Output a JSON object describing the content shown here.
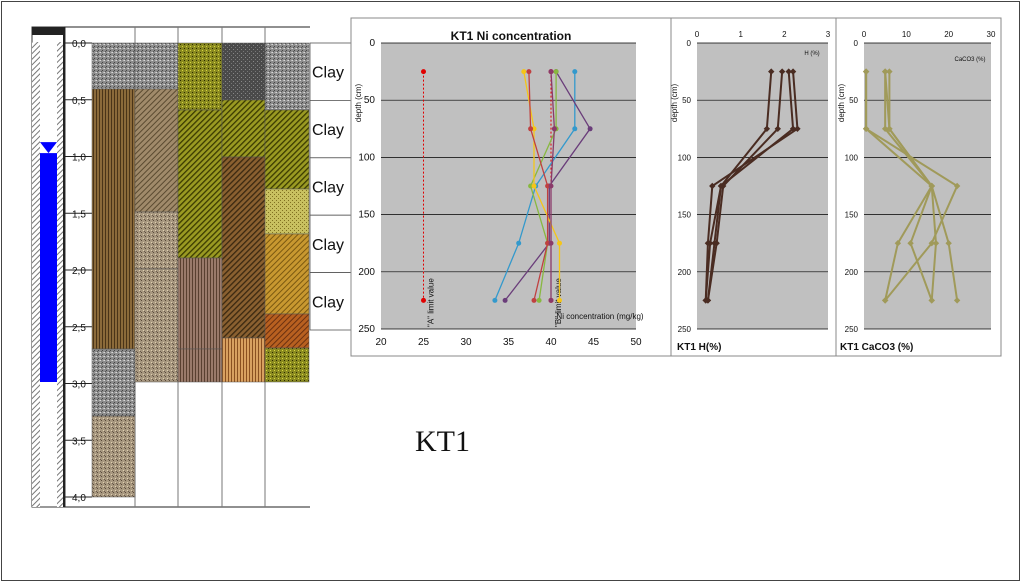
{
  "caption": "KT1",
  "colors": {
    "plot_bg": "#c0c0c0",
    "water": "#0000ff",
    "hydro": "#4a2c22",
    "caco3": "#a09a5a"
  },
  "core_log": {
    "depth_ticks": [
      "0,0",
      "0,5",
      "1,0",
      "1,5",
      "2,0",
      "2,5",
      "3,0",
      "3,5",
      "4,0"
    ],
    "water_level_m": 0.97,
    "layer_labels": [
      "Clay",
      "Clay",
      "Clay",
      "Clay",
      "Clay"
    ]
  },
  "chart_data": [
    {
      "type": "line",
      "title": "KT1 Ni concentration",
      "xlabel": "Ni concentration (mg/kg)",
      "ylabel": "depth (cm)",
      "xlim": [
        20,
        50
      ],
      "ylim": [
        0,
        250
      ],
      "x_ticks": [
        "20",
        "25",
        "30",
        "35",
        "40",
        "45",
        "50"
      ],
      "y_ticks": [
        "0",
        "50",
        "100",
        "150",
        "200",
        "250"
      ],
      "grid": true,
      "depth_values": [
        25,
        75,
        125,
        175,
        225
      ],
      "series": [
        {
          "color": "#3399cc",
          "values": [
            42.8,
            42.8,
            38.2,
            36.2,
            33.4
          ]
        },
        {
          "color": "#6a3d7a",
          "values": [
            40.6,
            44.6,
            39.8,
            39.8,
            34.6
          ]
        },
        {
          "color": "#88b840",
          "values": [
            40.6,
            40.6,
            37.6,
            39.6,
            38.6
          ]
        },
        {
          "color": "#f5c518",
          "values": [
            36.8,
            38.0,
            38.0,
            41.0,
            41.0
          ]
        },
        {
          "color": "#c04040",
          "values": [
            37.4,
            37.6,
            39.6,
            39.6,
            38.0
          ]
        },
        {
          "color": "#8a3a6a",
          "values": [
            40.0,
            40.4,
            40.0,
            40.0,
            40.0
          ]
        }
      ],
      "limit_lines": [
        {
          "label": "\"A\" limit value",
          "x": 25,
          "color": "#e00000"
        },
        {
          "label": "\"B\" limit value",
          "x": 40,
          "color": "#e00000"
        }
      ]
    },
    {
      "type": "line",
      "title": "KT1 H(%)",
      "xlabel": "H (%)",
      "ylabel": "depth (cm)",
      "xlim": [
        0,
        3
      ],
      "ylim": [
        0,
        250
      ],
      "x_ticks": [
        "0",
        "1",
        "2",
        "3"
      ],
      "y_ticks": [
        "0",
        "50",
        "100",
        "150",
        "200",
        "250"
      ],
      "grid": true,
      "depth_values": [
        25,
        75,
        125,
        175,
        225
      ],
      "series": [
        {
          "values": [
            1.7,
            1.6,
            0.55,
            0.3,
            0.2
          ]
        },
        {
          "values": [
            2.1,
            2.2,
            0.55,
            0.4,
            0.25
          ]
        },
        {
          "values": [
            2.2,
            2.3,
            0.35,
            0.25,
            0.2
          ]
        },
        {
          "values": [
            1.95,
            1.85,
            0.6,
            0.45,
            0.25
          ]
        }
      ]
    },
    {
      "type": "line",
      "title": "KT1 CaCO3 (%)",
      "xlabel": "CaCO3 (%)",
      "ylabel": "depth (cm)",
      "xlim": [
        0,
        30
      ],
      "ylim": [
        0,
        250
      ],
      "x_ticks": [
        "0",
        "10",
        "20",
        "30"
      ],
      "y_ticks": [
        "0",
        "50",
        "100",
        "150",
        "200",
        "250"
      ],
      "grid": true,
      "depth_values": [
        25,
        75,
        125,
        175,
        225
      ],
      "series": [
        {
          "values": [
            0.5,
            0.5,
            22,
            16,
            5
          ]
        },
        {
          "values": [
            5,
            5,
            16,
            20,
            22
          ]
        },
        {
          "values": [
            6,
            6,
            16,
            8,
            5
          ]
        },
        {
          "values": [
            0.5,
            0.5,
            16,
            17,
            16
          ]
        },
        {
          "values": [
            5,
            6,
            16,
            11,
            16
          ]
        }
      ]
    }
  ]
}
